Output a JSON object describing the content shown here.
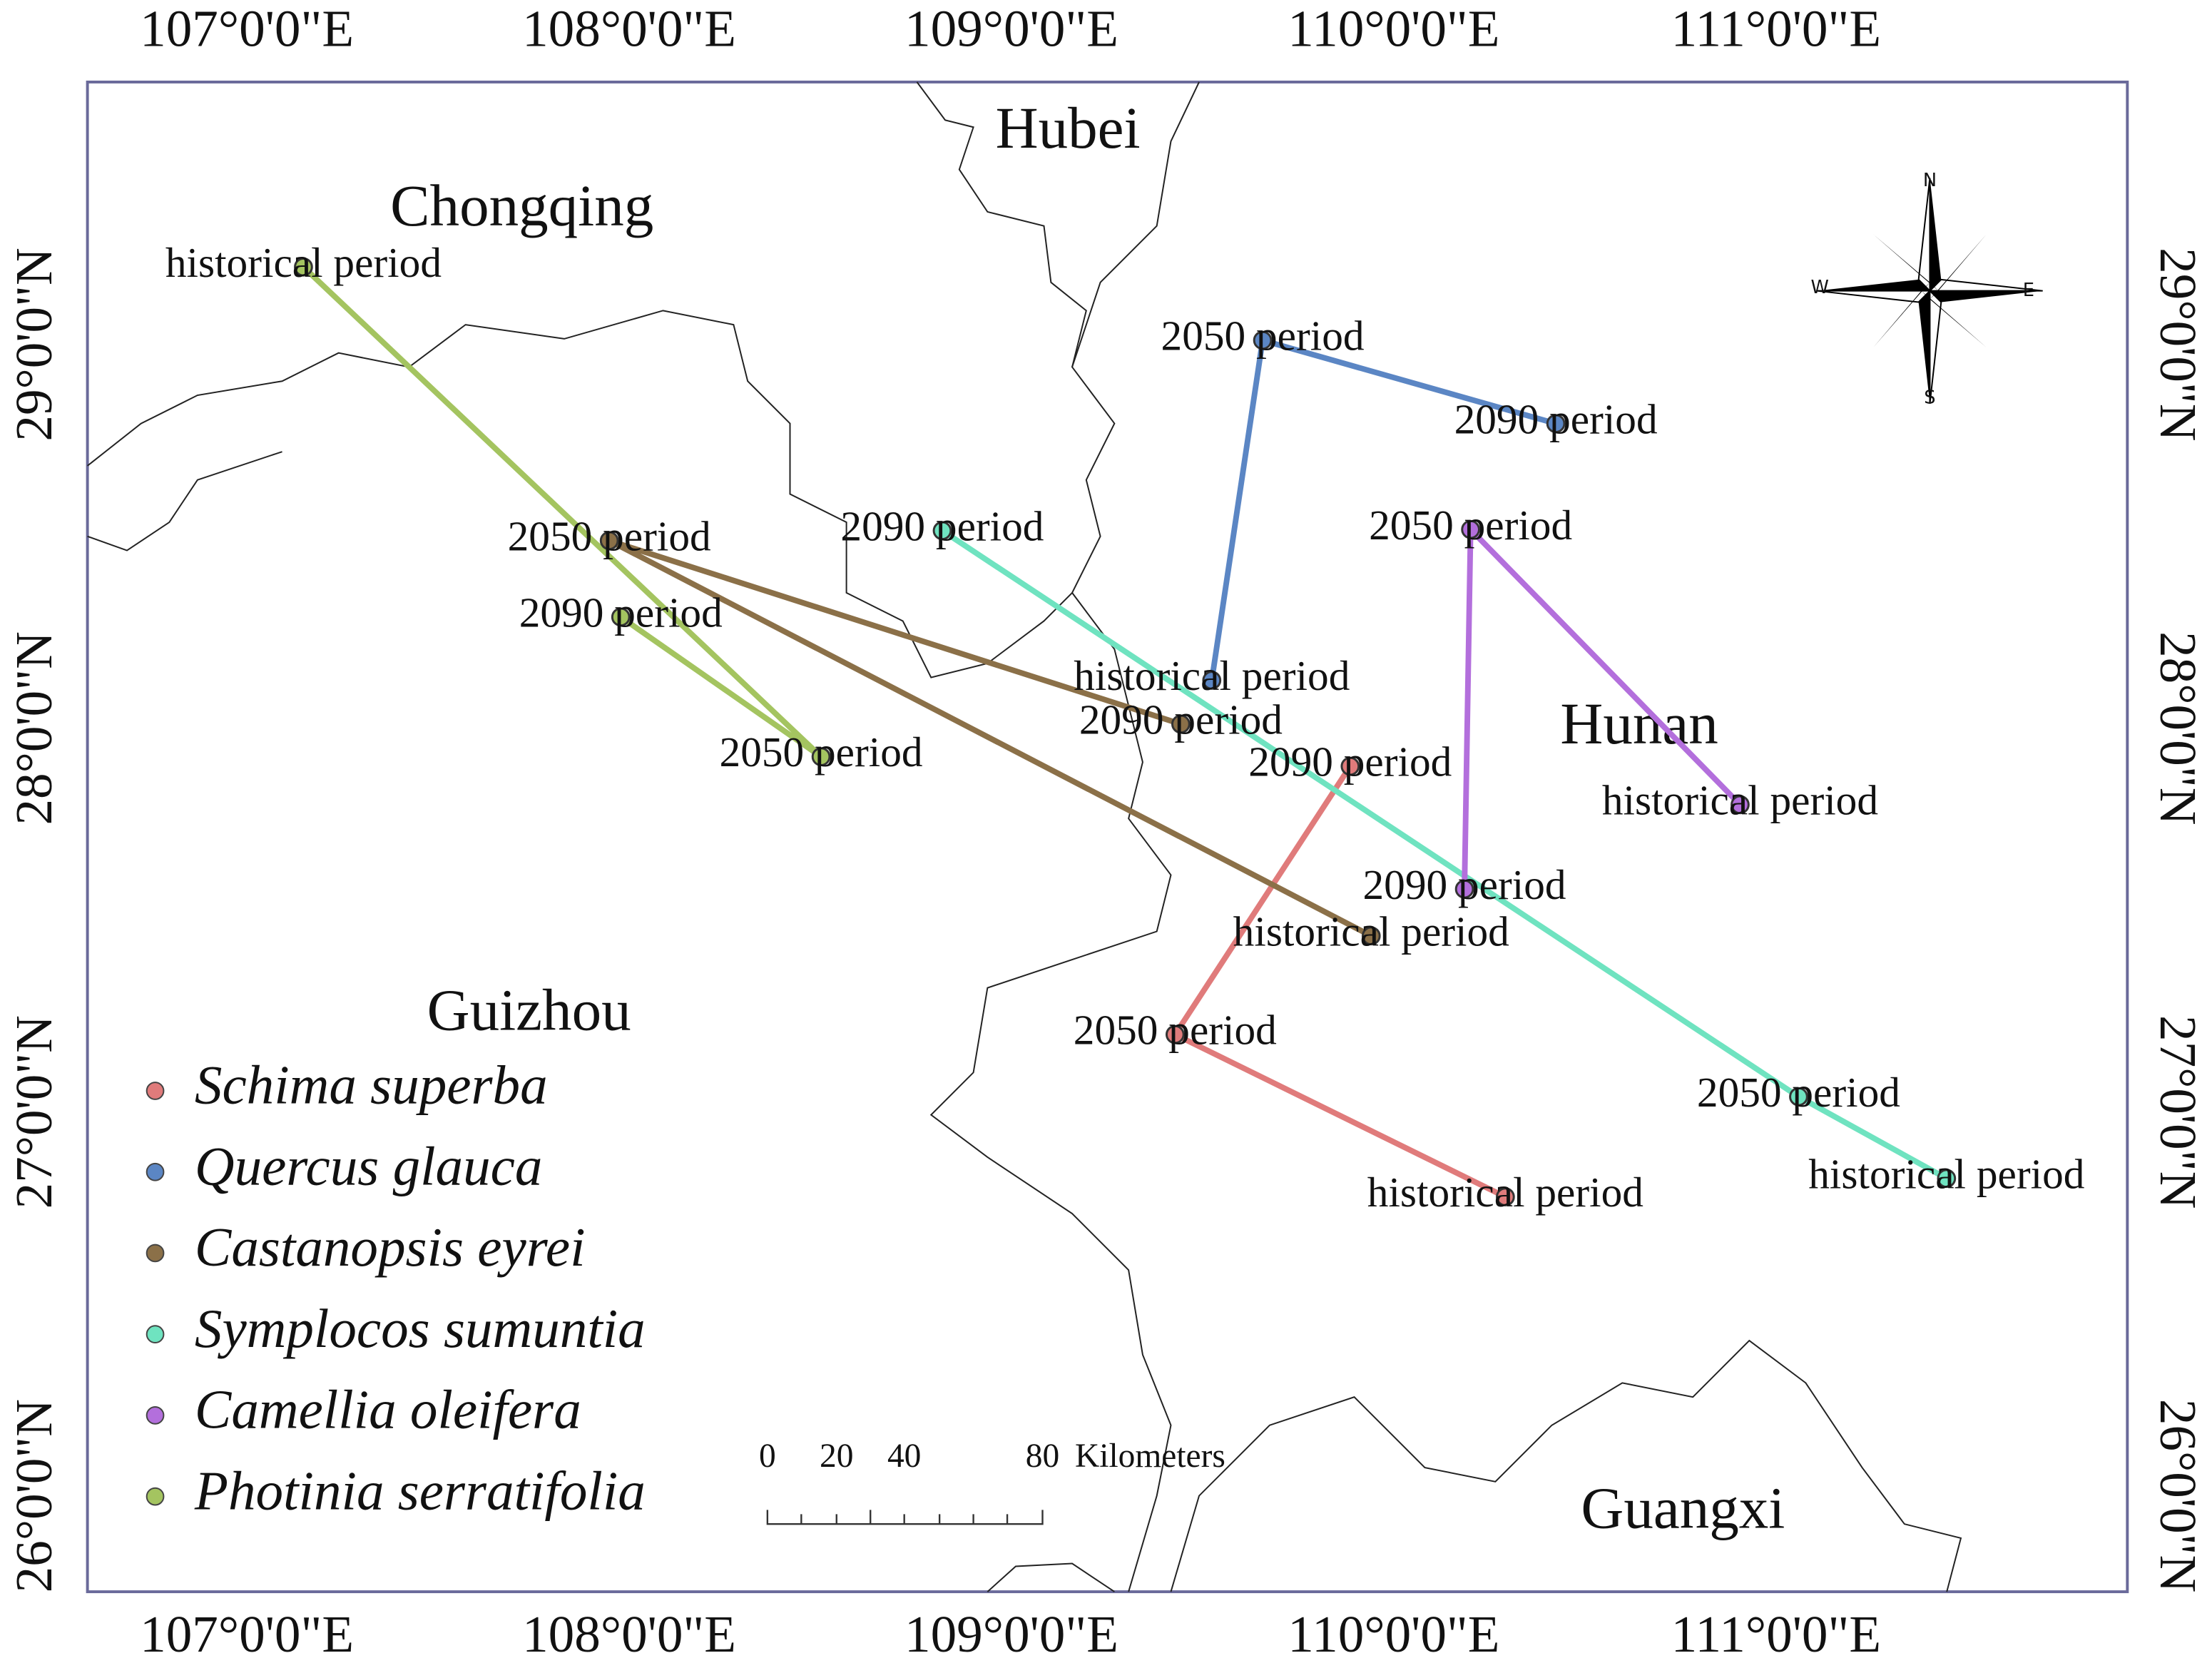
{
  "chart_data": {
    "type": "map",
    "xlim": [
      106.583,
      111.919
    ],
    "ylim": [
      25.75,
      29.684
    ],
    "xticks": [
      {
        "value": 107,
        "label": "107°0'0\"E"
      },
      {
        "value": 108,
        "label": "108°0'0\"E"
      },
      {
        "value": 109,
        "label": "109°0'0\"E"
      },
      {
        "value": 110,
        "label": "110°0'0\"E"
      },
      {
        "value": 111,
        "label": "111°0'0\"E"
      }
    ],
    "yticks": [
      {
        "value": 26,
        "label": "26°0'0\"N"
      },
      {
        "value": 27,
        "label": "27°0'0\"N"
      },
      {
        "value": 28,
        "label": "28°0'0\"N"
      },
      {
        "value": 29,
        "label": "29°0'0\"N"
      }
    ],
    "regions": [
      "Chongqing",
      "Hubei",
      "Hunan",
      "Guizhou",
      "Guangxi"
    ],
    "period_labels": [
      "historical period",
      "2050 period",
      "2090 period"
    ],
    "series": [
      {
        "name": "Schima superba",
        "color": "#e07b7b",
        "x": [
          110.292,
          109.428,
          109.886
        ],
        "y": [
          26.779,
          27.202,
          27.901
        ]
      },
      {
        "name": "Quercus glauca",
        "color": "#5b86c4",
        "x": [
          109.524,
          109.657,
          110.424
        ],
        "y": [
          28.125,
          29.011,
          28.794
        ]
      },
      {
        "name": "Castanopsis eyrei",
        "color": "#8b7048",
        "x": [
          109.941,
          107.948,
          109.443
        ],
        "y": [
          27.459,
          28.489,
          28.011
        ]
      },
      {
        "name": "Symplocos sumuntia",
        "color": "#6fe3c0",
        "x": [
          111.446,
          111.059,
          108.819
        ],
        "y": [
          26.827,
          27.04,
          28.515
        ]
      },
      {
        "name": "Camellia oleifera",
        "color": "#b36fdc",
        "x": [
          110.906,
          110.201,
          110.185
        ],
        "y": [
          27.801,
          28.518,
          27.581
        ]
      },
      {
        "name": "Photinia serratifolia",
        "color": "#a4c460",
        "x": [
          107.148,
          108.502,
          107.978
        ],
        "y": [
          29.202,
          27.926,
          28.29
        ]
      }
    ],
    "scale_bar": [
      "0",
      "20",
      "40",
      "80",
      "Kilometers"
    ],
    "compass": [
      "N",
      "S",
      "E",
      "W"
    ]
  }
}
